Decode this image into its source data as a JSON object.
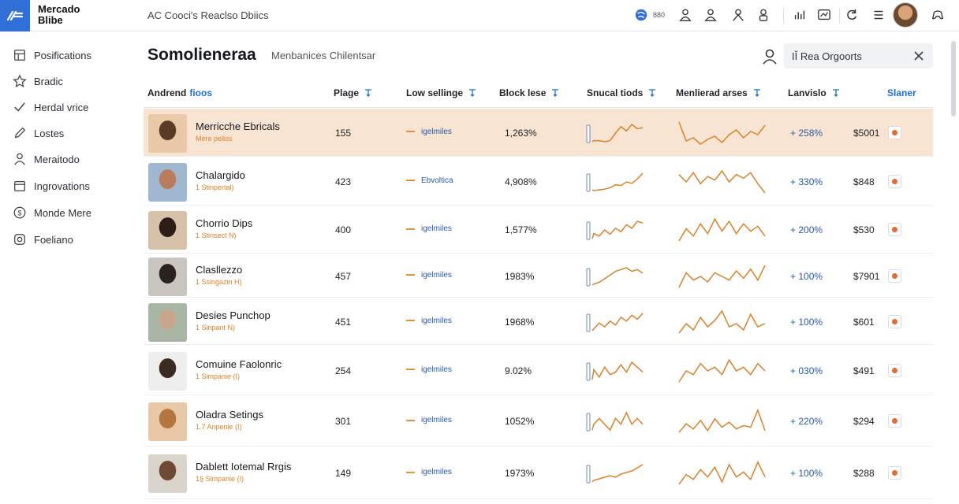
{
  "app": {
    "logo_line1": "Mercado",
    "logo_line2": "Blibe",
    "top_title": "AC Cooci's Reaclso Dbiics",
    "status_count": "880"
  },
  "sidebar": {
    "items": [
      {
        "label": "Posifications",
        "icon": "layout-icon"
      },
      {
        "label": "Bradic",
        "icon": "star-icon"
      },
      {
        "label": "Herdal vrice",
        "icon": "check-icon"
      },
      {
        "label": "Lostes",
        "icon": "pencil-icon"
      },
      {
        "label": "Meraitodo",
        "icon": "person-icon"
      },
      {
        "label": "Ingrovations",
        "icon": "calendar-icon"
      },
      {
        "label": "Monde Mere",
        "icon": "dollar-icon"
      },
      {
        "label": "Foeliano",
        "icon": "badge-icon"
      }
    ]
  },
  "main": {
    "title": "Somolieneraa",
    "subtitle": "Menbanices Chilentsar",
    "search_value": "IǏ Rea Orgoorts"
  },
  "table": {
    "headers": {
      "name_a": "Andrend",
      "name_b": "fioos",
      "page": "Plage",
      "selling": "Low sellinge",
      "block": "Block lese",
      "trend_small": "Snucal tiods",
      "trend_large": "Menlierad arses",
      "change": "Lanvislo",
      "last": "Slaner"
    },
    "rows": [
      {
        "name": "Merricche Ebricals",
        "sub": "Mere pellos",
        "page": "155",
        "selling": "igelmiles",
        "block": "1,263%",
        "change": "+ 258%",
        "price": "$5001",
        "selected": true,
        "spark_small": [
          4,
          5,
          5,
          4,
          5,
          12,
          18,
          14,
          20,
          16,
          17
        ],
        "spark_large": [
          20,
          8,
          10,
          6,
          9,
          11,
          7,
          12,
          15,
          10,
          14,
          12,
          18
        ]
      },
      {
        "name": "Chalargido",
        "sub": "1 Stinpertal)",
        "page": "423",
        "selling": "Ebvoltica",
        "block": "4,908%",
        "change": "+ 330%",
        "price": "$848",
        "selected": false,
        "spark_small": [
          3,
          2,
          3,
          4,
          6,
          10,
          9,
          14,
          12,
          18,
          26
        ],
        "spark_large": [
          14,
          10,
          15,
          9,
          13,
          11,
          16,
          10,
          14,
          12,
          15,
          9,
          4
        ]
      },
      {
        "name": "Chorrio Dips",
        "sub": "1 Stinsect N)",
        "page": "400",
        "selling": "igelmiles",
        "block": "1,577%",
        "change": "+ 200%",
        "price": "$530",
        "selected": false,
        "spark_small": [
          4,
          10,
          7,
          14,
          9,
          16,
          12,
          20,
          16,
          24,
          22
        ],
        "spark_large": [
          6,
          16,
          10,
          20,
          12,
          24,
          14,
          22,
          12,
          20,
          14,
          18,
          10
        ]
      },
      {
        "name": "Clasllezzo",
        "sub": "1 Ssingazin H)",
        "page": "457",
        "selling": "igelmiles",
        "block": "1983%",
        "change": "+ 100%",
        "price": "$7901",
        "selected": false,
        "spark_small": [
          3,
          4,
          6,
          10,
          14,
          18,
          20,
          22,
          18,
          20,
          16
        ],
        "spark_large": [
          6,
          14,
          10,
          12,
          9,
          14,
          12,
          10,
          15,
          11,
          16,
          10,
          18
        ]
      },
      {
        "name": "Desies Punchop",
        "sub": "1 Sinpant N)",
        "page": "451",
        "selling": "igelmiles",
        "block": "1968%",
        "change": "+ 100%",
        "price": "$601",
        "selected": false,
        "spark_small": [
          4,
          6,
          12,
          8,
          14,
          10,
          18,
          14,
          20,
          16,
          22
        ],
        "spark_large": [
          8,
          14,
          10,
          18,
          12,
          16,
          22,
          12,
          14,
          10,
          20,
          12,
          14
        ]
      },
      {
        "name": "Comuine Faolonric",
        "sub": "1 Simpanie (I)",
        "page": "254",
        "selling": "igelmiles",
        "block": "9.02%",
        "change": "+ 030%",
        "price": "$491",
        "selected": false,
        "spark_small": [
          6,
          14,
          8,
          16,
          10,
          12,
          18,
          12,
          20,
          16,
          12
        ],
        "spark_large": [
          6,
          12,
          10,
          16,
          12,
          14,
          10,
          18,
          12,
          14,
          10,
          16,
          12
        ]
      },
      {
        "name": "Oladra Setings",
        "sub": "1.7 Anpenie (I)",
        "page": "301",
        "selling": "igelmiles",
        "block": "1052%",
        "change": "+ 220%",
        "price": "$294",
        "selected": false,
        "spark_small": [
          10,
          12,
          14,
          12,
          10,
          14,
          12,
          16,
          12,
          14,
          12
        ],
        "spark_large": [
          4,
          14,
          8,
          18,
          6,
          20,
          10,
          16,
          8,
          12,
          10,
          30,
          6
        ]
      },
      {
        "name": "Dablett Iotemal Rrgis",
        "sub": "1§ Simpanie (I)",
        "page": "149",
        "selling": "igelmiles",
        "block": "1973%",
        "change": "+ 100%",
        "price": "$288",
        "selected": false,
        "spark_small": [
          4,
          6,
          8,
          10,
          12,
          10,
          14,
          16,
          18,
          22,
          26
        ],
        "spark_large": [
          6,
          14,
          10,
          18,
          12,
          20,
          8,
          22,
          12,
          16,
          10,
          24,
          12
        ]
      }
    ]
  },
  "colors": {
    "accent_blue": "#1e6fcc",
    "spark_orange": "#d8822a",
    "selected_row": "#f8e4d3"
  }
}
